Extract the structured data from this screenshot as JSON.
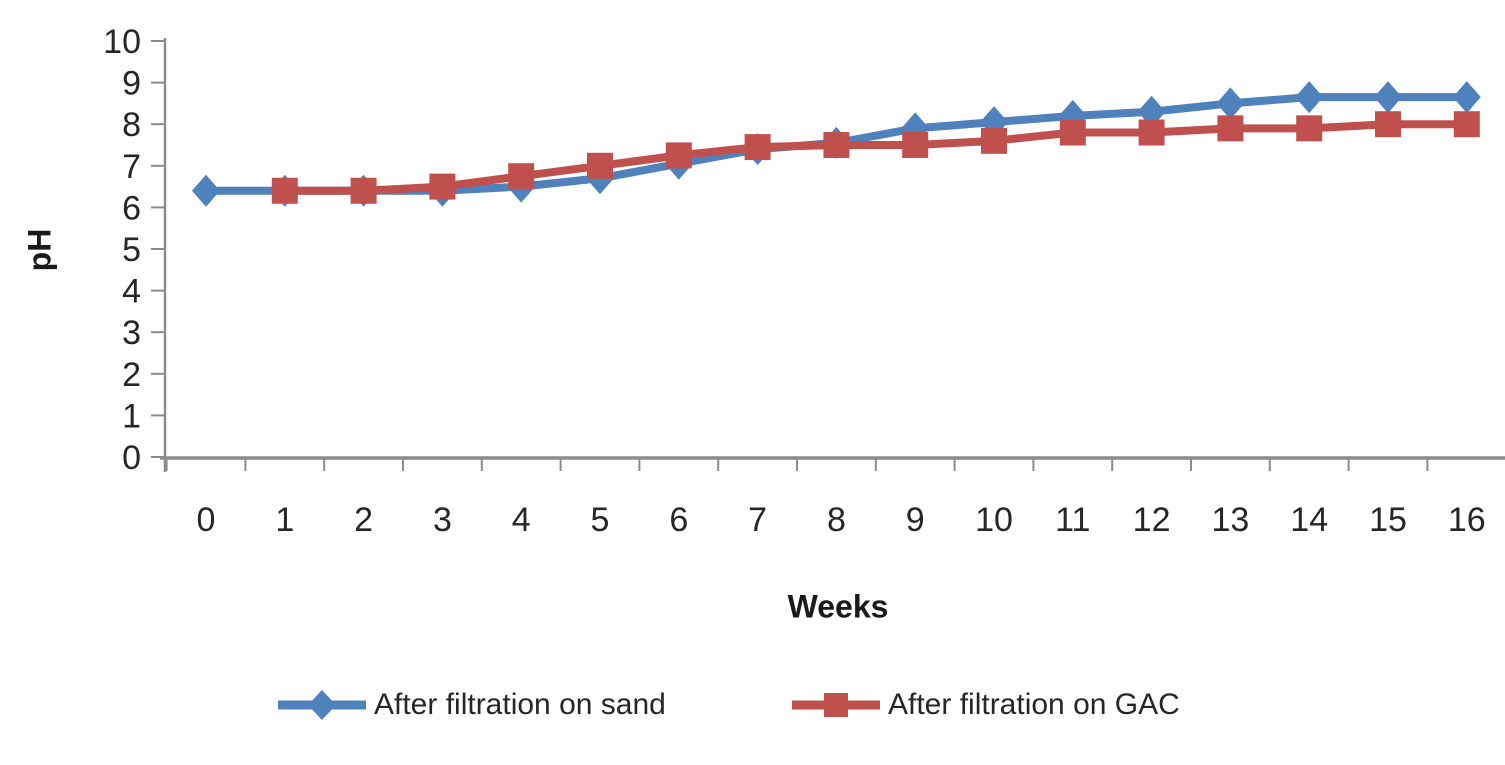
{
  "chart_data": {
    "type": "line",
    "title": "",
    "xlabel": "Weeks",
    "ylabel": "pH",
    "x": [
      0,
      1,
      2,
      3,
      4,
      5,
      6,
      7,
      8,
      9,
      10,
      11,
      12,
      13,
      14,
      15,
      16
    ],
    "ylim": [
      0,
      10
    ],
    "ytick_step": 1,
    "grid": false,
    "legend_position": "bottom",
    "series": [
      {
        "name": "After filtration on sand",
        "color": "#4F81BD",
        "marker": "diamond",
        "values": [
          6.4,
          6.4,
          6.4,
          6.4,
          6.5,
          6.7,
          7.05,
          7.4,
          7.55,
          7.9,
          8.05,
          8.2,
          8.3,
          8.5,
          8.65,
          8.65,
          8.65
        ]
      },
      {
        "name": "After filtration on GAC",
        "color": "#C0504D",
        "marker": "square",
        "values": [
          null,
          6.4,
          6.4,
          6.5,
          6.75,
          7.0,
          7.25,
          7.45,
          7.5,
          7.5,
          7.6,
          7.8,
          7.8,
          7.9,
          7.9,
          8.0,
          8.0
        ]
      }
    ]
  },
  "style": {
    "axis_color": "#8C8C8C",
    "tick_text_color": "#262626",
    "background": "#FFFFFF"
  }
}
